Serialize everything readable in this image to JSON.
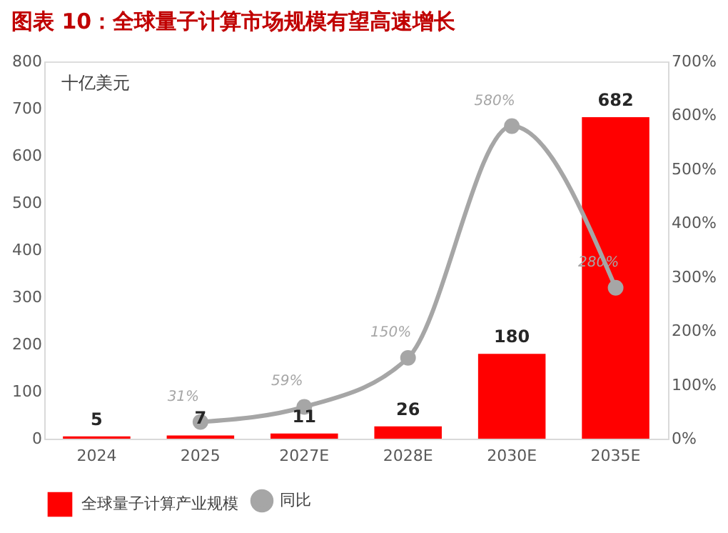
{
  "chart_data": {
    "type": "bar",
    "title": "图表 10：全球量子计算市场规模有望高速增长",
    "categories": [
      "2024",
      "2025",
      "2027E",
      "2028E",
      "2030E",
      "2035E"
    ],
    "series": [
      {
        "name": "全球量子计算产业规模",
        "color": "#ff0000",
        "values": [
          5,
          7,
          11,
          26,
          180,
          682
        ],
        "value_labels": [
          "5",
          "7",
          "11",
          "26",
          "180",
          "682"
        ]
      },
      {
        "name": "同比",
        "type": "line",
        "axis": "y2",
        "color": "#a6a6a6",
        "values": [
          null,
          31,
          59,
          150,
          580,
          280
        ],
        "value_labels": [
          null,
          "31%",
          "59%",
          "150%",
          "580%",
          "280%"
        ]
      }
    ],
    "ylim": [
      0,
      800
    ],
    "yticks": [
      0,
      100,
      200,
      300,
      400,
      500,
      600,
      700,
      800
    ],
    "y2lim": [
      0,
      700
    ],
    "y2ticks": [
      {
        "value": 0,
        "label": "0%"
      },
      {
        "value": 100,
        "label": "100%"
      },
      {
        "value": 200,
        "label": "200%"
      },
      {
        "value": 300,
        "label": "300%"
      },
      {
        "value": 400,
        "label": "400%"
      },
      {
        "value": 500,
        "label": "500%"
      },
      {
        "value": 600,
        "label": "600%"
      },
      {
        "value": 700,
        "label": "700%"
      }
    ],
    "annotations": [
      "十亿美元"
    ],
    "legend": "bottom",
    "marker": "circle",
    "grid": false
  }
}
